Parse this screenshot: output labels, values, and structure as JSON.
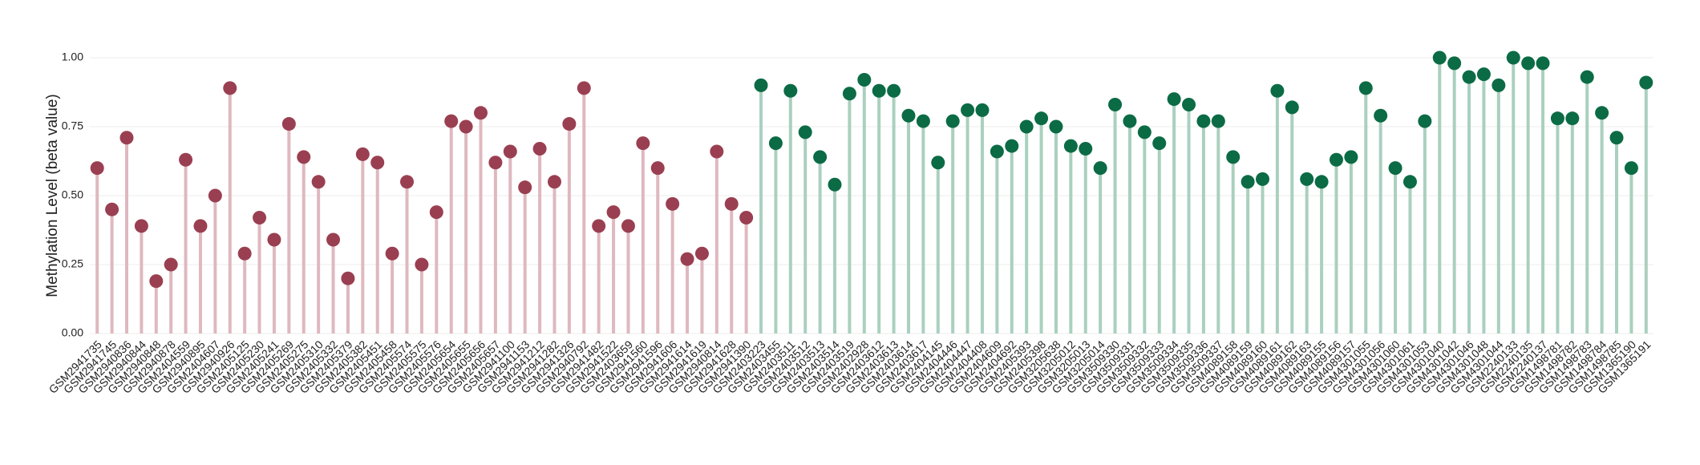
{
  "chart_data": {
    "type": "lollipop",
    "y_label": "Methylation Level (beta value)",
    "ylim": [
      0,
      1
    ],
    "yticks": [
      {
        "value": 0,
        "label": "0.00"
      },
      0.25,
      {
        "value": 0.5,
        "label": "0.50"
      },
      0.75,
      {
        "value": 1,
        "label": "1.00"
      }
    ],
    "grid": true,
    "categories": [
      "GSM2941735",
      "GSM2941745",
      "GSM2940836",
      "GSM2940844",
      "GSM2940848",
      "GSM2940878",
      "GSM2404559",
      "GSM2940895",
      "GSM2404607",
      "GSM2940926",
      "GSM2405125",
      "GSM2405230",
      "GSM2405241",
      "GSM2405269",
      "GSM2405275",
      "GSM2405310",
      "GSM2405332",
      "GSM2405379",
      "GSM2405382",
      "GSM2405451",
      "GSM2405458",
      "GSM2405574",
      "GSM2405575",
      "GSM2405576",
      "GSM2405654",
      "GSM2405655",
      "GSM2405656",
      "GSM2405657",
      "GSM2941100",
      "GSM2941153",
      "GSM2941212",
      "GSM2941282",
      "GSM2941326",
      "GSM2940792",
      "GSM2941482",
      "GSM2941522",
      "GSM2403659",
      "GSM2941560",
      "GSM2941596",
      "GSM2941606",
      "GSM2941614",
      "GSM2941619",
      "GSM2940814",
      "GSM2941628",
      "GSM2941390",
      "GSM2403223",
      "GSM2403455",
      "GSM2403511",
      "GSM2403512",
      "GSM2403513",
      "GSM2403514",
      "GSM2403519",
      "GSM2402928",
      "GSM2403612",
      "GSM2403613",
      "GSM2403614",
      "GSM2403617",
      "GSM2404145",
      "GSM2404446",
      "GSM2404447",
      "GSM2404408",
      "GSM2404609",
      "GSM2404692",
      "GSM2405393",
      "GSM2405398",
      "GSM3205638",
      "GSM3205012",
      "GSM3205013",
      "GSM3205014",
      "GSM3509330",
      "GSM3509331",
      "GSM3509332",
      "GSM3509333",
      "GSM3509334",
      "GSM3509335",
      "GSM3509336",
      "GSM3509337",
      "GSM4089158",
      "GSM4089159",
      "GSM4089160",
      "GSM4089161",
      "GSM4089162",
      "GSM4089163",
      "GSM4089155",
      "GSM4089156",
      "GSM4089157",
      "GSM4301055",
      "GSM4301056",
      "GSM4301060",
      "GSM4301061",
      "GSM4301053",
      "GSM4301040",
      "GSM4301042",
      "GSM4301046",
      "GSM4301048",
      "GSM4301044",
      "GSM2240133",
      "GSM2240135",
      "GSM2240137",
      "GSM1498781",
      "GSM1498782",
      "GSM1498783",
      "GSM1498784",
      "GSM1498785",
      "GSM1365190",
      "GSM1365191"
    ],
    "series": [
      {
        "color": "#9a3f51",
        "stem_color": "#dfb8c0",
        "values": [
          0.6,
          0.45,
          0.71,
          0.39,
          0.19,
          0.25,
          0.63,
          0.39,
          0.5,
          0.89,
          0.29,
          0.42,
          0.34,
          0.76,
          0.64,
          0.55,
          0.34,
          0.2,
          0.65,
          0.62,
          0.29,
          0.55,
          0.25,
          0.44,
          0.77,
          0.75,
          0.8,
          0.62,
          0.66,
          0.53,
          0.67,
          0.55,
          0.76,
          0.89,
          0.39,
          0.44,
          0.39,
          0.69,
          0.6,
          0.47,
          0.27,
          0.29,
          0.66,
          0.47,
          0.42,
          null,
          null,
          null,
          null,
          null,
          null,
          null,
          null,
          null,
          null,
          null,
          null,
          null,
          null,
          null,
          null,
          null,
          null,
          null,
          null,
          null,
          null,
          null,
          null,
          null,
          null,
          null,
          null,
          null,
          null,
          null,
          null,
          null,
          null,
          null,
          null,
          null,
          null,
          null,
          null,
          null,
          null,
          null,
          null,
          null,
          null,
          null,
          null,
          null,
          null,
          null,
          null,
          null,
          null,
          null,
          null,
          null,
          null,
          null,
          null,
          null
        ]
      },
      {
        "color": "#0b6b45",
        "stem_color": "#aad0bf",
        "values": [
          null,
          null,
          null,
          null,
          null,
          null,
          null,
          null,
          null,
          null,
          null,
          null,
          null,
          null,
          null,
          null,
          null,
          null,
          null,
          null,
          null,
          null,
          null,
          null,
          null,
          null,
          null,
          null,
          null,
          null,
          null,
          null,
          null,
          null,
          null,
          null,
          null,
          null,
          null,
          null,
          null,
          null,
          null,
          null,
          null,
          0.9,
          0.69,
          0.88,
          0.73,
          0.64,
          0.54,
          0.87,
          0.92,
          0.88,
          0.88,
          0.79,
          0.77,
          0.62,
          0.77,
          0.81,
          0.81,
          0.66,
          0.68,
          0.75,
          0.78,
          0.75,
          0.68,
          0.67,
          0.6,
          0.83,
          0.77,
          0.73,
          0.69,
          0.85,
          0.83,
          0.77,
          0.77,
          0.64,
          0.55,
          0.56,
          0.88,
          0.82,
          0.56,
          0.55,
          0.63,
          0.64,
          0.89,
          0.79,
          0.6,
          0.55,
          0.77,
          1.0,
          0.98,
          0.93,
          0.94,
          0.9,
          1.0,
          0.98,
          0.98,
          0.78,
          0.78,
          0.93,
          0.8,
          0.71,
          0.6,
          0.91
        ]
      }
    ]
  }
}
